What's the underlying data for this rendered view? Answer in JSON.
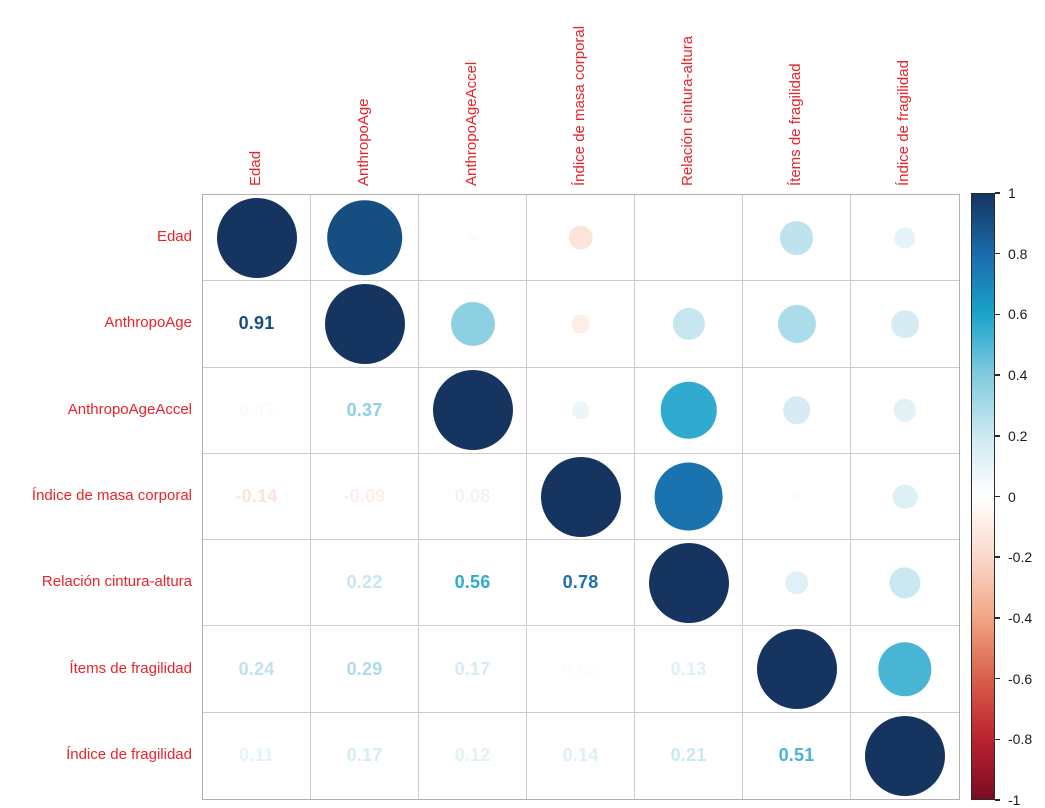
{
  "chart_data": {
    "type": "heatmap",
    "subtype": "correlation-matrix-corrplot",
    "title": "",
    "variables": [
      "Edad",
      "AnthropoAge",
      "AnthropoAgeAccel",
      "Índice de masa corporal",
      "Relación cintura-altura",
      "Ítems de fragilidad",
      "Índice de fragilidad"
    ],
    "matrix": [
      [
        1.0,
        0.91,
        0.03,
        -0.14,
        0.0,
        0.24,
        0.11
      ],
      [
        0.91,
        1.0,
        0.37,
        -0.09,
        0.22,
        0.29,
        0.17
      ],
      [
        0.03,
        0.37,
        1.0,
        0.08,
        0.56,
        0.17,
        0.12
      ],
      [
        -0.14,
        -0.09,
        0.08,
        1.0,
        0.78,
        0.02,
        0.14
      ],
      [
        0.0,
        0.22,
        0.56,
        0.78,
        1.0,
        0.13,
        0.21
      ],
      [
        0.24,
        0.29,
        0.17,
        0.02,
        0.13,
        1.0,
        0.51
      ],
      [
        0.11,
        0.17,
        0.12,
        0.14,
        0.21,
        0.51,
        1.0
      ]
    ],
    "display": {
      "upper_triangle": "circles sized and colored by correlation",
      "lower_triangle": "numeric values colored by correlation",
      "diagonal": "full circles (r = 1)"
    },
    "value_range": [
      -1,
      1
    ],
    "grid_on": true,
    "legend_position": "right colorbar",
    "label_color": "#e8242a",
    "grid_line_color": "#cdcdcd",
    "grid_border_color": "#b0b0b0",
    "colormap_stops": [
      {
        "t": -1.0,
        "color": "#7a0c23"
      },
      {
        "t": -0.8,
        "color": "#bb2330"
      },
      {
        "t": -0.6,
        "color": "#d8604c"
      },
      {
        "t": -0.4,
        "color": "#f2a585"
      },
      {
        "t": -0.2,
        "color": "#fbd9ca"
      },
      {
        "t": 0.0,
        "color": "#ffffff"
      },
      {
        "t": 0.2,
        "color": "#cde9f2"
      },
      {
        "t": 0.4,
        "color": "#82cbdf"
      },
      {
        "t": 0.6,
        "color": "#1ba3cb"
      },
      {
        "t": 0.8,
        "color": "#1a6cab"
      },
      {
        "t": 1.0,
        "color": "#153560"
      }
    ],
    "colorbar_ticks": [
      "1",
      "0.8",
      "0.6",
      "0.4",
      "0.2",
      "0",
      "-0.2",
      "-0.4",
      "-0.6",
      "-0.8",
      "-1"
    ]
  }
}
